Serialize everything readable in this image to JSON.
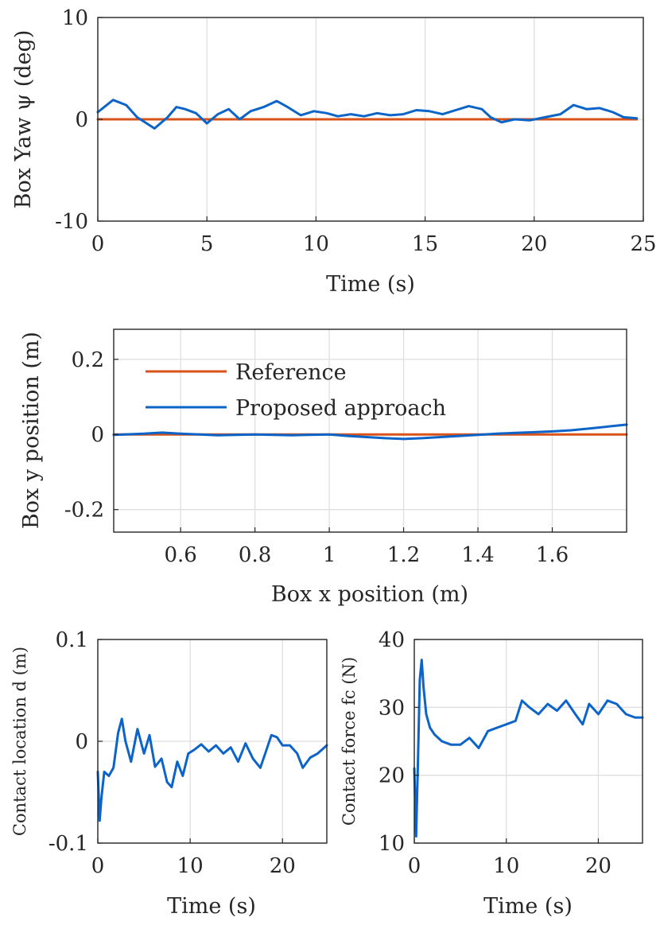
{
  "colors": {
    "reference": "#d95319",
    "proposed": "#0c64c8",
    "axis": "#262626",
    "grid": "#dfdfdf"
  },
  "chart_data": [
    {
      "type": "line",
      "xlabel": "Time (s)",
      "ylabel": "Box Yaw ψ (deg)",
      "xlim": [
        0,
        25
      ],
      "ylim": [
        -10,
        10
      ],
      "xticks": [
        0,
        5,
        10,
        15,
        20,
        25
      ],
      "yticks": [
        -10,
        0,
        10
      ],
      "xtick_labels": [
        "0",
        "5",
        "10",
        "15",
        "20",
        "25"
      ],
      "ytick_labels": [
        "-10",
        "0",
        "10"
      ],
      "grid": true,
      "series": [
        {
          "name": "Reference",
          "color": "#d95319",
          "x": [
            0,
            24.7
          ],
          "y": [
            0,
            0
          ]
        },
        {
          "name": "Proposed approach",
          "color": "#0c64c8",
          "x": [
            0,
            0.7,
            1.3,
            1.8,
            2.6,
            3.2,
            3.6,
            4.0,
            4.5,
            5.0,
            5.5,
            6.0,
            6.5,
            7.0,
            7.6,
            8.2,
            8.7,
            9.3,
            9.9,
            10.5,
            11.0,
            11.6,
            12.2,
            12.8,
            13.4,
            14.0,
            14.6,
            15.2,
            15.8,
            16.4,
            17.0,
            17.6,
            18.0,
            18.5,
            19.1,
            19.8,
            20.5,
            21.2,
            21.8,
            22.4,
            23.0,
            23.6,
            24.1,
            24.7
          ],
          "y": [
            0.7,
            1.9,
            1.4,
            0.2,
            -0.9,
            0.2,
            1.2,
            1.0,
            0.6,
            -0.4,
            0.5,
            1.0,
            0.0,
            0.8,
            1.2,
            1.8,
            1.2,
            0.4,
            0.8,
            0.6,
            0.3,
            0.5,
            0.3,
            0.6,
            0.4,
            0.5,
            0.9,
            0.8,
            0.5,
            0.9,
            1.3,
            1.0,
            0.2,
            -0.3,
            0.0,
            -0.1,
            0.2,
            0.5,
            1.4,
            1.0,
            1.1,
            0.7,
            0.2,
            0.1
          ]
        }
      ]
    },
    {
      "type": "line",
      "xlabel": "Box x position (m)",
      "ylabel": "Box y position (m)",
      "xlim": [
        0.42,
        1.8
      ],
      "ylim": [
        -0.26,
        0.28
      ],
      "xticks": [
        0.6,
        0.8,
        1,
        1.2,
        1.4,
        1.6
      ],
      "yticks": [
        -0.2,
        0,
        0.2
      ],
      "xtick_labels": [
        "0.6",
        "0.8",
        "1",
        "1.2",
        "1.4",
        "1.6"
      ],
      "ytick_labels": [
        "-0.2",
        "0",
        "0.2"
      ],
      "grid": true,
      "legend": {
        "position": "top-left",
        "entries": [
          {
            "label": "Reference",
            "color": "#d95319"
          },
          {
            "label": "Proposed approach",
            "color": "#0c64c8"
          }
        ]
      },
      "series": [
        {
          "name": "Reference",
          "color": "#d95319",
          "x": [
            0.42,
            1.8
          ],
          "y": [
            0,
            0
          ]
        },
        {
          "name": "Proposed approach",
          "color": "#0c64c8",
          "x": [
            0.42,
            0.5,
            0.55,
            0.6,
            0.7,
            0.8,
            0.9,
            1.0,
            1.05,
            1.1,
            1.15,
            1.2,
            1.25,
            1.3,
            1.35,
            1.4,
            1.45,
            1.5,
            1.55,
            1.6,
            1.65,
            1.7,
            1.75,
            1.8
          ],
          "y": [
            -0.001,
            0.002,
            0.005,
            0.002,
            -0.002,
            0.0,
            -0.002,
            0.0,
            -0.004,
            -0.007,
            -0.01,
            -0.012,
            -0.01,
            -0.007,
            -0.004,
            -0.001,
            0.002,
            0.004,
            0.006,
            0.008,
            0.011,
            0.016,
            0.021,
            0.026
          ]
        }
      ]
    },
    {
      "type": "line",
      "xlabel": "Time (s)",
      "ylabel": "Contact location d (m)",
      "xlim": [
        0,
        24.8
      ],
      "ylim": [
        -0.1,
        0.1
      ],
      "xticks": [
        0,
        10,
        20
      ],
      "yticks": [
        -0.1,
        0,
        0.1
      ],
      "xtick_labels": [
        "0",
        "10",
        "20"
      ],
      "ytick_labels": [
        "-0.1",
        "0",
        "0.1"
      ],
      "grid": true,
      "series": [
        {
          "name": "Proposed approach",
          "color": "#0c64c8",
          "x": [
            0,
            0.2,
            0.4,
            0.7,
            1.2,
            1.7,
            2.2,
            2.6,
            3.0,
            3.6,
            4.3,
            5.0,
            5.6,
            6.2,
            6.9,
            7.5,
            8.0,
            8.6,
            9.2,
            9.8,
            10.5,
            11.2,
            12.0,
            12.8,
            13.6,
            14.4,
            15.2,
            16.0,
            16.8,
            17.6,
            18.2,
            18.8,
            19.4,
            20.0,
            20.8,
            21.6,
            22.2,
            23.0,
            23.8,
            24.8
          ],
          "y": [
            -0.03,
            -0.078,
            -0.055,
            -0.03,
            -0.034,
            -0.026,
            0.008,
            0.022,
            0.0,
            -0.02,
            0.012,
            -0.012,
            0.006,
            -0.025,
            -0.017,
            -0.04,
            -0.045,
            -0.02,
            -0.034,
            -0.012,
            -0.008,
            -0.003,
            -0.01,
            -0.004,
            -0.012,
            -0.006,
            -0.02,
            -0.002,
            -0.017,
            -0.026,
            -0.01,
            0.006,
            0.004,
            -0.004,
            -0.004,
            -0.012,
            -0.026,
            -0.016,
            -0.012,
            -0.004
          ]
        }
      ]
    },
    {
      "type": "line",
      "xlabel": "Time (s)",
      "ylabel": "Contact force fc (N)",
      "xlim": [
        0,
        24.8
      ],
      "ylim": [
        10,
        40
      ],
      "xticks": [
        0,
        10,
        20
      ],
      "yticks": [
        10,
        20,
        30,
        40
      ],
      "xtick_labels": [
        "0",
        "10",
        "20"
      ],
      "ytick_labels": [
        "10",
        "20",
        "30",
        "40"
      ],
      "grid": true,
      "series": [
        {
          "name": "Proposed approach",
          "color": "#0c64c8",
          "x": [
            0,
            0.2,
            0.4,
            0.6,
            0.8,
            1.0,
            1.3,
            1.7,
            2.2,
            3.0,
            4.0,
            5.0,
            6.0,
            7.0,
            8.0,
            9.0,
            10.0,
            11.0,
            11.7,
            12.5,
            13.5,
            14.5,
            15.5,
            16.5,
            17.5,
            18.3,
            19.0,
            20.0,
            21.0,
            22.0,
            23.0,
            24.0,
            24.8
          ],
          "y": [
            21,
            11,
            22,
            34,
            37,
            33,
            29,
            27,
            26,
            25,
            24.5,
            24.5,
            25.5,
            24,
            26.5,
            27,
            27.5,
            28,
            31,
            30,
            29,
            30.5,
            29.5,
            31,
            29,
            27.5,
            30.5,
            29,
            31,
            30.5,
            29,
            28.5,
            28.5
          ]
        }
      ]
    }
  ]
}
